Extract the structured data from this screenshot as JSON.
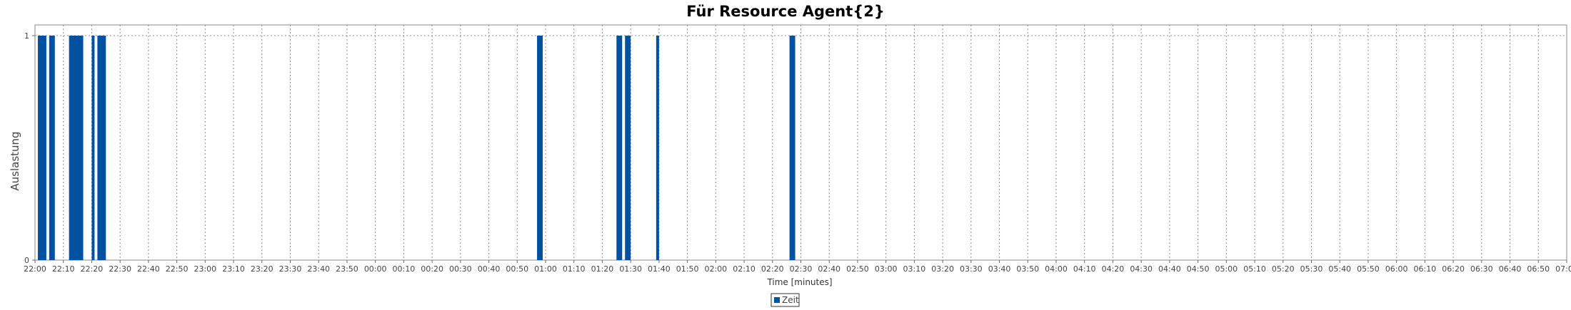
{
  "chart_data": {
    "type": "bar",
    "title": "Für Resource Agent{2}",
    "xlabel": "Time [minutes]",
    "ylabel": "Auslastung",
    "ylim": [
      0,
      1
    ],
    "yticks": [
      "0",
      "1"
    ],
    "x_range": [
      "22:00",
      "07:00"
    ],
    "x_tick_labels": [
      "22:00",
      "22:10",
      "22:20",
      "22:30",
      "22:40",
      "22:50",
      "23:00",
      "23:10",
      "23:20",
      "23:30",
      "23:40",
      "23:50",
      "00:00",
      "00:10",
      "00:20",
      "00:30",
      "00:40",
      "00:50",
      "01:00",
      "01:10",
      "01:20",
      "01:30",
      "01:40",
      "01:50",
      "02:00",
      "02:10",
      "02:20",
      "02:30",
      "02:40",
      "02:50",
      "03:00",
      "03:10",
      "03:20",
      "03:30",
      "03:40",
      "03:50",
      "04:00",
      "04:10",
      "04:20",
      "04:30",
      "04:40",
      "04:50",
      "05:00",
      "05:10",
      "05:20",
      "05:30",
      "05:40",
      "05:50",
      "06:00",
      "06:10",
      "06:20",
      "06:30",
      "06:40",
      "06:50",
      "07:00"
    ],
    "grid": true,
    "legend_position": "bottom-center",
    "series": [
      {
        "name": "Zeit",
        "color": "#0051a0",
        "intervals": [
          {
            "start": "22:01",
            "end": "22:04",
            "value": 1
          },
          {
            "start": "22:05",
            "end": "22:07",
            "value": 1
          },
          {
            "start": "22:12",
            "end": "22:17",
            "value": 1
          },
          {
            "start": "22:20",
            "end": "22:21",
            "value": 1
          },
          {
            "start": "22:22",
            "end": "22:25",
            "value": 1
          },
          {
            "start": "00:57",
            "end": "00:59",
            "value": 1
          },
          {
            "start": "01:25",
            "end": "01:27",
            "value": 1
          },
          {
            "start": "01:28",
            "end": "01:30",
            "value": 1
          },
          {
            "start": "01:39",
            "end": "01:40",
            "value": 1
          },
          {
            "start": "02:26",
            "end": "02:28",
            "value": 1
          }
        ]
      }
    ]
  }
}
